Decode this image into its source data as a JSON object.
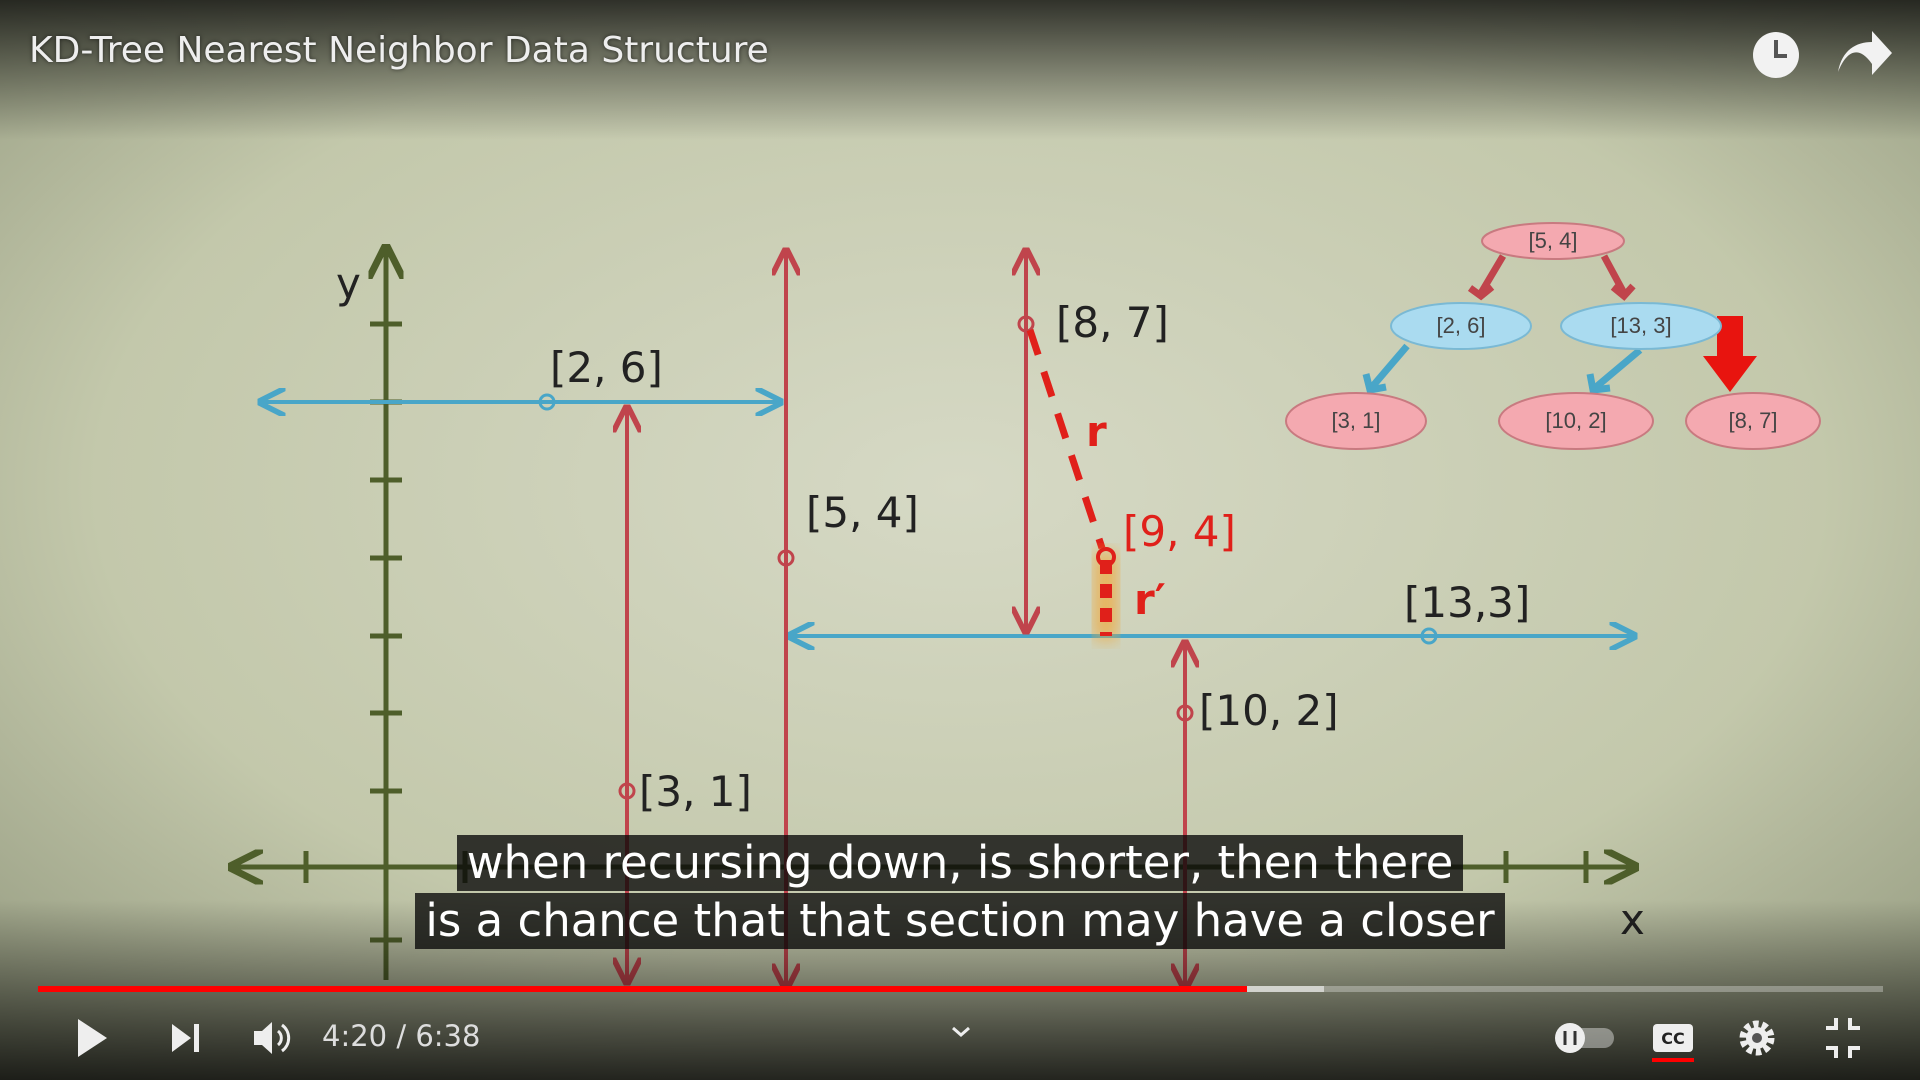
{
  "player": {
    "title": "KD-Tree Nearest Neighbor Data Structure",
    "time": "4:20 / 6:38"
  },
  "video": {
    "axis_labels": {
      "y": "y",
      "x": "x"
    },
    "points": [
      "[2, 6]",
      "[5, 4]",
      "[8, 7]",
      "[9, 4]",
      "[13,3]",
      "[10, 2]",
      "[3, 1]"
    ],
    "radius_labels": [
      "r",
      "r′"
    ],
    "tree_nodes": [
      "[5, 4]",
      "[2, 6]",
      "[13, 3]",
      "[3, 1]",
      "[10, 2]",
      "[8, 7]"
    ],
    "captions": [
      "when recursing down, is shorter, then there",
      "is a chance that that section may have a closer"
    ]
  }
}
